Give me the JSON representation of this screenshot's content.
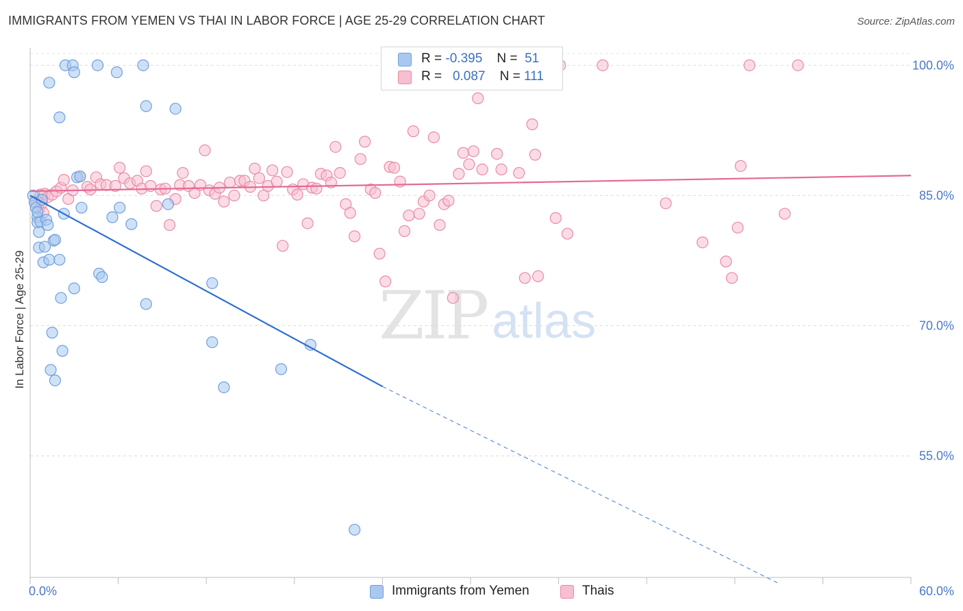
{
  "title": "IMMIGRANTS FROM YEMEN VS THAI IN LABOR FORCE | AGE 25-29 CORRELATION CHART",
  "source": "Source: ZipAtlas.com",
  "watermark": {
    "zip": "ZIP",
    "atlas": "atlas"
  },
  "legend": {
    "rows": [
      {
        "r_label": "R =",
        "r_value": "-0.395",
        "n_label": "N =",
        "n_value": "51",
        "color": "#a8c8f0",
        "border": "#6f9fdc"
      },
      {
        "r_label": "R =",
        "r_value": "0.087",
        "n_label": "N =",
        "n_value": "111",
        "color": "#f7bfd0",
        "border": "#e88aa8"
      }
    ]
  },
  "bottom_legend": [
    {
      "label": "Immigrants from Yemen",
      "color": "#a8c8f0",
      "border": "#6f9fdc"
    },
    {
      "label": "Thais",
      "color": "#f7bfd0",
      "border": "#e88aa8"
    }
  ],
  "chart_data": {
    "type": "scatter",
    "title": "IMMIGRANTS FROM YEMEN VS THAI IN LABOR FORCE | AGE 25-29 CORRELATION CHART",
    "xlabel": "",
    "ylabel": "In Labor Force | Age 25-29",
    "xlim": [
      0,
      60
    ],
    "ylim": [
      41,
      102
    ],
    "x_tick_labels": [
      "0.0%",
      "60.0%"
    ],
    "y_ticks": [
      55,
      70,
      85,
      100
    ],
    "y_tick_labels": [
      "55.0%",
      "70.0%",
      "85.0%",
      "100.0%"
    ],
    "grid": true,
    "series": [
      {
        "name": "Immigrants from Yemen",
        "color": "#6f9fdc",
        "fill": "#a8c8f0",
        "r": -0.395,
        "n": 51,
        "trend": {
          "x": [
            0,
            24
          ],
          "y": [
            85.0,
            63.0
          ],
          "dashed_to": [
            51,
            40.3
          ]
        },
        "points": [
          [
            0.2,
            85.0
          ],
          [
            0.3,
            84.2
          ],
          [
            0.4,
            83.6
          ],
          [
            0.5,
            82.5
          ],
          [
            0.5,
            81.9
          ],
          [
            0.6,
            79.0
          ],
          [
            0.6,
            80.8
          ],
          [
            0.7,
            82.0
          ],
          [
            0.8,
            84.5
          ],
          [
            0.9,
            77.3
          ],
          [
            1.0,
            79.1
          ],
          [
            1.1,
            82.2
          ],
          [
            1.2,
            81.6
          ],
          [
            1.3,
            77.6
          ],
          [
            1.3,
            98.0
          ],
          [
            1.4,
            64.9
          ],
          [
            1.5,
            69.2
          ],
          [
            1.6,
            79.8
          ],
          [
            1.7,
            79.9
          ],
          [
            1.7,
            63.7
          ],
          [
            2.0,
            94.0
          ],
          [
            2.0,
            77.6
          ],
          [
            2.1,
            73.2
          ],
          [
            2.2,
            67.1
          ],
          [
            2.3,
            82.9
          ],
          [
            2.4,
            100.0
          ],
          [
            2.9,
            100.0
          ],
          [
            3.0,
            99.2
          ],
          [
            3.0,
            74.3
          ],
          [
            3.2,
            87.1
          ],
          [
            3.4,
            87.2
          ],
          [
            3.5,
            83.6
          ],
          [
            4.6,
            100.0
          ],
          [
            4.7,
            76.0
          ],
          [
            4.9,
            75.6
          ],
          [
            5.6,
            82.5
          ],
          [
            5.9,
            99.2
          ],
          [
            6.1,
            83.6
          ],
          [
            6.9,
            81.7
          ],
          [
            7.7,
            100.0
          ],
          [
            7.9,
            95.3
          ],
          [
            7.9,
            72.5
          ],
          [
            9.4,
            84.0
          ],
          [
            9.9,
            95.0
          ],
          [
            12.4,
            74.9
          ],
          [
            12.4,
            68.1
          ],
          [
            13.2,
            62.9
          ],
          [
            17.1,
            65.0
          ],
          [
            19.1,
            67.8
          ],
          [
            22.1,
            46.5
          ],
          [
            0.5,
            83.1
          ]
        ]
      },
      {
        "name": "Thais",
        "color": "#e88aa8",
        "fill": "#f7bfd0",
        "r": 0.087,
        "n": 111,
        "trend": {
          "x": [
            0,
            60
          ],
          "y": [
            85.5,
            87.3
          ]
        },
        "points": [
          [
            0.4,
            84.4
          ],
          [
            0.6,
            83.4
          ],
          [
            0.7,
            85.1
          ],
          [
            0.8,
            84.1
          ],
          [
            0.9,
            83.0
          ],
          [
            1.0,
            85.2
          ],
          [
            1.2,
            84.8
          ],
          [
            1.5,
            85.1
          ],
          [
            1.8,
            85.5
          ],
          [
            2.1,
            85.9
          ],
          [
            2.3,
            86.8
          ],
          [
            2.6,
            84.6
          ],
          [
            2.9,
            85.6
          ],
          [
            3.4,
            87.2
          ],
          [
            3.9,
            86.0
          ],
          [
            4.1,
            85.7
          ],
          [
            4.5,
            87.1
          ],
          [
            4.8,
            86.3
          ],
          [
            5.2,
            86.2
          ],
          [
            5.8,
            86.1
          ],
          [
            6.1,
            88.2
          ],
          [
            6.4,
            87.0
          ],
          [
            6.8,
            86.4
          ],
          [
            7.3,
            86.7
          ],
          [
            7.6,
            85.8
          ],
          [
            7.9,
            87.8
          ],
          [
            8.2,
            86.1
          ],
          [
            8.6,
            83.8
          ],
          [
            8.9,
            85.7
          ],
          [
            9.2,
            85.8
          ],
          [
            9.5,
            81.6
          ],
          [
            9.9,
            84.6
          ],
          [
            10.2,
            86.2
          ],
          [
            10.4,
            87.6
          ],
          [
            10.8,
            86.1
          ],
          [
            11.2,
            85.3
          ],
          [
            11.6,
            86.2
          ],
          [
            11.9,
            90.2
          ],
          [
            12.2,
            85.6
          ],
          [
            12.6,
            85.2
          ],
          [
            12.9,
            85.9
          ],
          [
            13.2,
            84.3
          ],
          [
            13.6,
            86.5
          ],
          [
            13.9,
            85.0
          ],
          [
            14.3,
            86.7
          ],
          [
            14.6,
            86.7
          ],
          [
            15.0,
            86.0
          ],
          [
            15.3,
            88.1
          ],
          [
            15.6,
            87.0
          ],
          [
            15.9,
            85.0
          ],
          [
            16.2,
            86.1
          ],
          [
            16.5,
            87.9
          ],
          [
            16.8,
            86.6
          ],
          [
            17.2,
            79.2
          ],
          [
            17.5,
            87.7
          ],
          [
            17.9,
            85.7
          ],
          [
            18.2,
            85.1
          ],
          [
            18.6,
            86.3
          ],
          [
            18.9,
            81.8
          ],
          [
            19.2,
            85.9
          ],
          [
            19.5,
            85.8
          ],
          [
            19.8,
            87.5
          ],
          [
            20.2,
            87.3
          ],
          [
            20.5,
            86.5
          ],
          [
            20.8,
            90.6
          ],
          [
            21.1,
            87.6
          ],
          [
            21.5,
            84.0
          ],
          [
            21.8,
            83.0
          ],
          [
            22.1,
            80.3
          ],
          [
            22.5,
            89.2
          ],
          [
            22.8,
            91.2
          ],
          [
            23.2,
            85.7
          ],
          [
            23.5,
            85.3
          ],
          [
            23.8,
            78.3
          ],
          [
            24.2,
            75.1
          ],
          [
            24.5,
            88.3
          ],
          [
            24.8,
            88.2
          ],
          [
            25.2,
            86.6
          ],
          [
            25.5,
            80.9
          ],
          [
            25.8,
            82.7
          ],
          [
            26.1,
            92.4
          ],
          [
            26.5,
            82.9
          ],
          [
            26.8,
            84.3
          ],
          [
            27.2,
            85.0
          ],
          [
            27.5,
            91.7
          ],
          [
            27.9,
            81.6
          ],
          [
            28.2,
            84.0
          ],
          [
            28.5,
            84.4
          ],
          [
            28.8,
            73.2
          ],
          [
            29.2,
            87.5
          ],
          [
            29.5,
            89.9
          ],
          [
            29.9,
            88.6
          ],
          [
            30.2,
            90.1
          ],
          [
            30.5,
            96.2
          ],
          [
            30.8,
            88.0
          ],
          [
            31.8,
            89.8
          ],
          [
            32.1,
            88.0
          ],
          [
            33.3,
            87.6
          ],
          [
            33.7,
            75.5
          ],
          [
            34.2,
            93.2
          ],
          [
            34.4,
            89.7
          ],
          [
            34.6,
            75.7
          ],
          [
            35.8,
            82.4
          ],
          [
            36.1,
            100.0
          ],
          [
            36.6,
            80.6
          ],
          [
            39.0,
            100.0
          ],
          [
            43.3,
            84.1
          ],
          [
            45.8,
            79.6
          ],
          [
            47.4,
            77.4
          ],
          [
            47.8,
            75.5
          ],
          [
            48.2,
            81.3
          ],
          [
            48.4,
            88.4
          ],
          [
            49.0,
            100.0
          ],
          [
            51.4,
            82.9
          ],
          [
            52.3,
            100.0
          ]
        ]
      }
    ]
  }
}
